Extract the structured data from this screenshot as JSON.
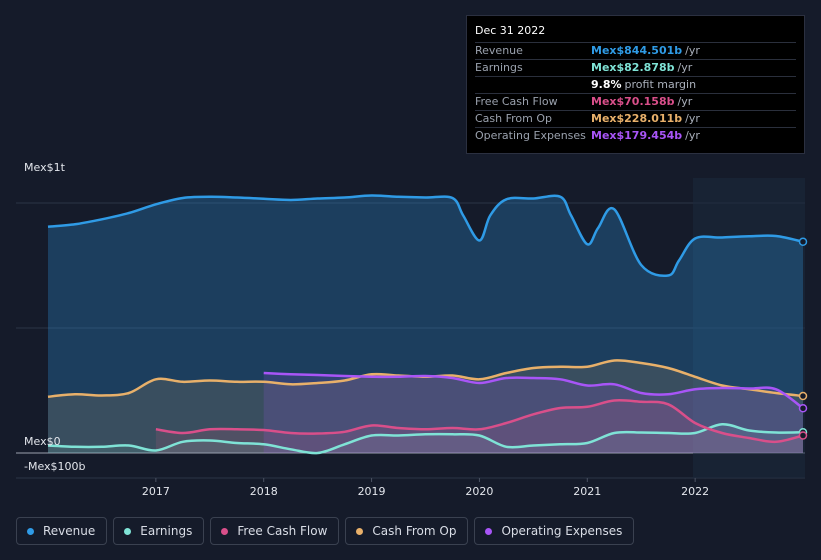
{
  "tooltip": {
    "date": "Dec 31 2022",
    "rows": [
      {
        "label": "Revenue",
        "value": "Mex$844.501b",
        "suffix": "/yr",
        "color": "#2f9be6"
      },
      {
        "label": "Earnings",
        "value": "Mex$82.878b",
        "suffix": "/yr",
        "color": "#7fe3d6"
      },
      {
        "label": "",
        "value": "9.8%",
        "suffix": "profit margin",
        "color": "#ffffff"
      },
      {
        "label": "Free Cash Flow",
        "value": "Mex$70.158b",
        "suffix": "/yr",
        "color": "#d94f8a"
      },
      {
        "label": "Cash From Op",
        "value": "Mex$228.011b",
        "suffix": "/yr",
        "color": "#e8b06a"
      },
      {
        "label": "Operating Expenses",
        "value": "Mex$179.454b",
        "suffix": "/yr",
        "color": "#a855f7"
      }
    ]
  },
  "legend": [
    {
      "label": "Revenue",
      "color": "#2f9be6"
    },
    {
      "label": "Earnings",
      "color": "#7fe3d6"
    },
    {
      "label": "Free Cash Flow",
      "color": "#d94f8a"
    },
    {
      "label": "Cash From Op",
      "color": "#e8b06a"
    },
    {
      "label": "Operating Expenses",
      "color": "#a855f7"
    }
  ],
  "chart_data": {
    "type": "area",
    "y_unit_labels": {
      "top": "Mex$1t",
      "zero": "Mex$0",
      "bottom": "-Mex$100b"
    },
    "ylim": [
      -100,
      1000
    ],
    "x_ticks": [
      "2017",
      "2018",
      "2019",
      "2020",
      "2021",
      "2022"
    ],
    "x_tick_values": [
      2017,
      2018,
      2019,
      2020,
      2021,
      2022
    ],
    "xlim": [
      2015.7,
      2023.0
    ],
    "grid": true,
    "legend_position": "bottom",
    "series": [
      {
        "name": "Revenue",
        "color": "#2f9be6",
        "x": [
          2016.0,
          2016.25,
          2016.5,
          2016.75,
          2017.0,
          2017.25,
          2017.5,
          2017.75,
          2018.0,
          2018.25,
          2018.5,
          2018.75,
          2019.0,
          2019.25,
          2019.5,
          2019.75,
          2019.85,
          2020.0,
          2020.1,
          2020.25,
          2020.5,
          2020.75,
          2020.85,
          2021.0,
          2021.1,
          2021.25,
          2021.5,
          2021.75,
          2021.85,
          2022.0,
          2022.25,
          2022.5,
          2022.75,
          2023.0
        ],
        "y": [
          905,
          915,
          935,
          960,
          995,
          1020,
          1025,
          1022,
          1017,
          1012,
          1018,
          1022,
          1030,
          1025,
          1022,
          1020,
          950,
          850,
          950,
          1015,
          1018,
          1025,
          950,
          835,
          900,
          975,
          752,
          710,
          770,
          858,
          862,
          867,
          868,
          845
        ]
      },
      {
        "name": "Earnings",
        "color": "#7fe3d6",
        "x": [
          2016.0,
          2016.25,
          2016.5,
          2016.75,
          2017.0,
          2017.25,
          2017.5,
          2017.75,
          2018.0,
          2018.25,
          2018.5,
          2018.75,
          2019.0,
          2019.25,
          2019.5,
          2019.75,
          2020.0,
          2020.25,
          2020.5,
          2020.75,
          2021.0,
          2021.25,
          2021.5,
          2021.75,
          2022.0,
          2022.25,
          2022.5,
          2022.75,
          2023.0
        ],
        "y": [
          30,
          25,
          25,
          30,
          10,
          45,
          50,
          40,
          35,
          15,
          0,
          35,
          70,
          70,
          75,
          75,
          70,
          25,
          30,
          35,
          40,
          80,
          82,
          80,
          80,
          115,
          90,
          82,
          83
        ]
      },
      {
        "name": "Free Cash Flow",
        "color": "#d94f8a",
        "x": [
          2017.0,
          2017.25,
          2017.5,
          2017.75,
          2018.0,
          2018.25,
          2018.5,
          2018.75,
          2019.0,
          2019.25,
          2019.5,
          2019.75,
          2020.0,
          2020.25,
          2020.5,
          2020.75,
          2021.0,
          2021.25,
          2021.5,
          2021.75,
          2022.0,
          2022.25,
          2022.5,
          2022.75,
          2023.0
        ],
        "y": [
          95,
          80,
          95,
          95,
          92,
          80,
          78,
          85,
          110,
          100,
          95,
          100,
          95,
          120,
          155,
          180,
          185,
          210,
          205,
          195,
          120,
          80,
          60,
          45,
          70
        ]
      },
      {
        "name": "Cash From Op",
        "color": "#e8b06a",
        "x": [
          2016.0,
          2016.25,
          2016.5,
          2016.75,
          2017.0,
          2017.25,
          2017.5,
          2017.75,
          2018.0,
          2018.25,
          2018.5,
          2018.75,
          2019.0,
          2019.25,
          2019.5,
          2019.75,
          2020.0,
          2020.25,
          2020.5,
          2020.75,
          2021.0,
          2021.25,
          2021.5,
          2021.75,
          2022.0,
          2022.25,
          2022.5,
          2022.75,
          2023.0
        ],
        "y": [
          225,
          235,
          230,
          240,
          295,
          285,
          290,
          285,
          285,
          275,
          280,
          290,
          315,
          310,
          305,
          310,
          295,
          320,
          340,
          345,
          345,
          370,
          360,
          340,
          305,
          270,
          255,
          240,
          228
        ]
      },
      {
        "name": "Operating Expenses",
        "color": "#a855f7",
        "x": [
          2018.0,
          2018.25,
          2018.5,
          2018.75,
          2019.0,
          2019.25,
          2019.5,
          2019.75,
          2020.0,
          2020.25,
          2020.5,
          2020.75,
          2021.0,
          2021.25,
          2021.5,
          2021.75,
          2022.0,
          2022.25,
          2022.5,
          2022.75,
          2023.0
        ],
        "y": [
          320,
          315,
          312,
          308,
          305,
          305,
          308,
          300,
          280,
          300,
          300,
          295,
          270,
          275,
          240,
          235,
          255,
          260,
          258,
          255,
          179
        ]
      }
    ]
  }
}
